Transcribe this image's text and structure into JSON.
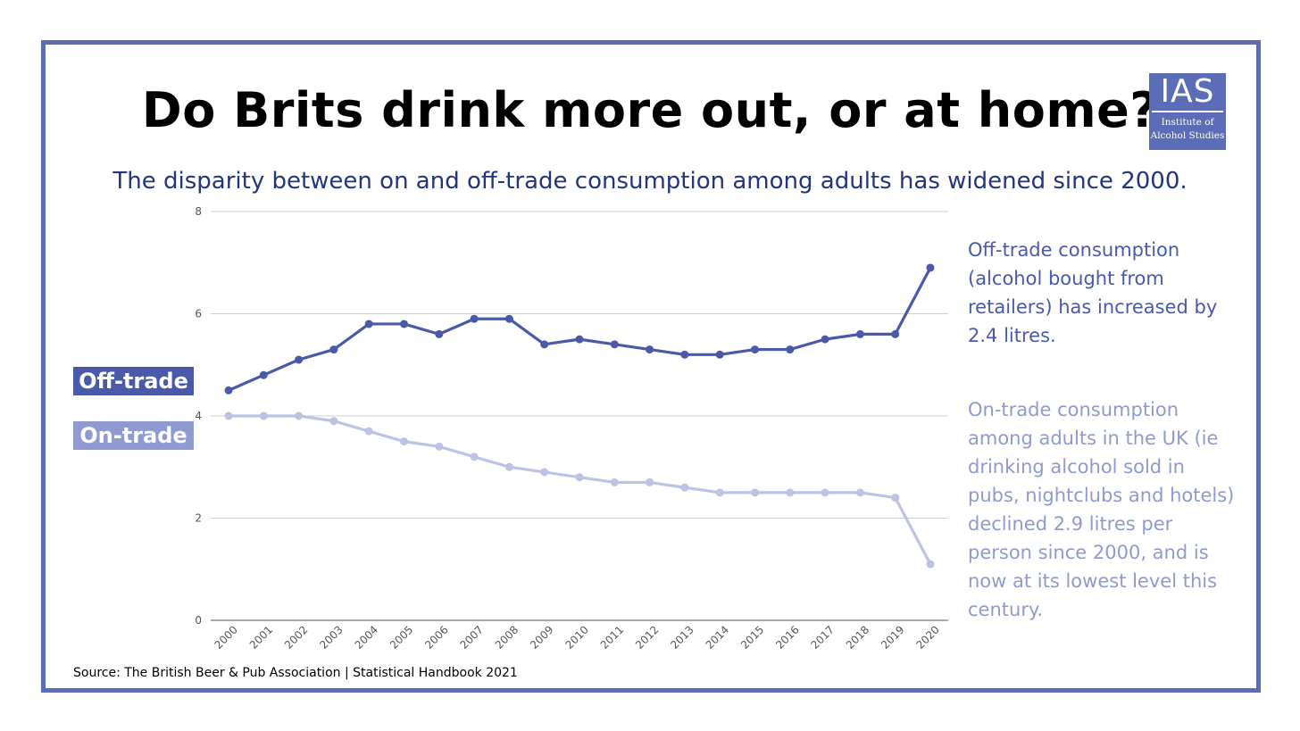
{
  "title": "Do Brits drink more out, or at home?",
  "subtitle": "The disparity between on and off-trade consumption among adults has widened since 2000.",
  "logo": {
    "mark": "IAS",
    "name_line1": "Institute of",
    "name_line2": "Alcohol Studies"
  },
  "colors": {
    "frame": "#5b6db6",
    "off_trade": "#4a5aa8",
    "on_trade": "#bcc3e3",
    "title_text": "#000000",
    "subtitle_text": "#22357e"
  },
  "labels": {
    "off_trade": "Off-trade",
    "on_trade": "On-trade"
  },
  "notes": {
    "off_trade": "Off-trade consumption (alcohol bought from retailers) has increased by 2.4 litres.",
    "on_trade": "On-trade consumption among adults in the UK (ie drinking alcohol sold in pubs, nightclubs and hotels) declined 2.9 litres per person since 2000, and is now at its lowest level this century."
  },
  "source": "Source: The British Beer & Pub Association | Statistical Handbook 2021",
  "chart_data": {
    "type": "line",
    "x": [
      "2000",
      "2001",
      "2002",
      "2003",
      "2004",
      "2005",
      "2006",
      "2007",
      "2008",
      "2009",
      "2010",
      "2011",
      "2012",
      "2013",
      "2014",
      "2015",
      "2016",
      "2017",
      "2018",
      "2019",
      "2020"
    ],
    "series": [
      {
        "name": "Off-trade",
        "color": "#4a5aa8",
        "values": [
          4.5,
          4.8,
          5.1,
          5.3,
          5.8,
          5.8,
          5.6,
          5.9,
          5.9,
          5.4,
          5.5,
          5.4,
          5.3,
          5.2,
          5.2,
          5.3,
          5.3,
          5.5,
          5.6,
          5.6,
          6.9
        ]
      },
      {
        "name": "On-trade",
        "color": "#bcc3e3",
        "values": [
          4.0,
          4.0,
          4.0,
          3.9,
          3.7,
          3.5,
          3.4,
          3.2,
          3.0,
          2.9,
          2.8,
          2.7,
          2.7,
          2.6,
          2.5,
          2.5,
          2.5,
          2.5,
          2.5,
          2.4,
          1.1
        ]
      }
    ],
    "ylim": [
      0,
      8
    ],
    "yticks": [
      0,
      2,
      4,
      6,
      8
    ],
    "grid": true
  }
}
